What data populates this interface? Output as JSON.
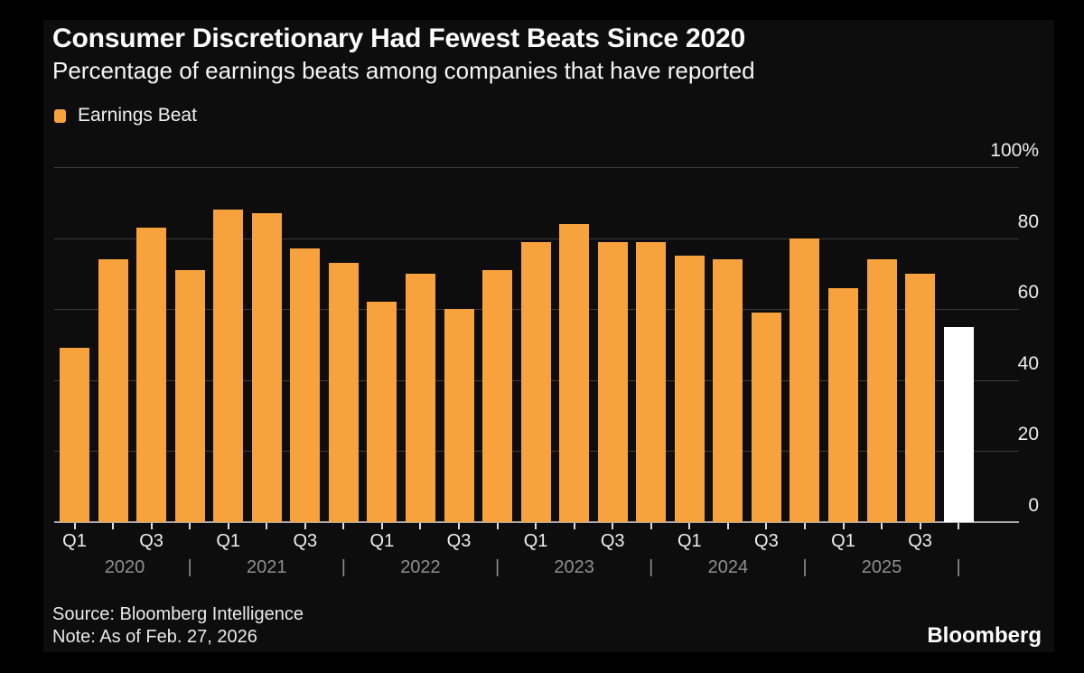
{
  "header": {
    "title": "Consumer Discretionary Had Fewest Beats Since 2020",
    "subtitle": "Percentage of earnings beats among companies that have reported"
  },
  "legend": {
    "label": "Earnings Beat",
    "swatch_color": "#F7A23C"
  },
  "chart_data": {
    "type": "bar",
    "title": "Consumer Discretionary Had Fewest Beats Since 2020",
    "subtitle": "Percentage of earnings beats among companies that have reported",
    "legend_entries": [
      "Earnings Beat"
    ],
    "categories": [
      "Q1 2020",
      "Q2 2020",
      "Q3 2020",
      "Q4 2020",
      "Q1 2021",
      "Q2 2021",
      "Q3 2021",
      "Q4 2021",
      "Q1 2022",
      "Q2 2022",
      "Q3 2022",
      "Q4 2022",
      "Q1 2023",
      "Q2 2023",
      "Q3 2023",
      "Q4 2023",
      "Q1 2024",
      "Q2 2024",
      "Q3 2024",
      "Q4 2024",
      "Q1 2025",
      "Q2 2025",
      "Q3 2025",
      "Q4 2025"
    ],
    "values": [
      49,
      74,
      83,
      71,
      88,
      87,
      77,
      73,
      62,
      70,
      60,
      71,
      79,
      84,
      79,
      79,
      75,
      74,
      59,
      80,
      66,
      74,
      70,
      55
    ],
    "bar_color": "#F7A23C",
    "highlight": {
      "index": 23,
      "category": "Q4 2025",
      "color": "#FFFFFF"
    },
    "ylim": [
      0,
      100
    ],
    "yticks": [
      0,
      20,
      40,
      60,
      80,
      100
    ],
    "ytick_labels": [
      "0",
      "20",
      "40",
      "60",
      "80",
      "100%"
    ],
    "grid": true,
    "legend_position": "top-left",
    "x_axis": {
      "quarter_labels": [
        "Q1",
        "Q3"
      ],
      "year_labels": [
        "2020",
        "2021",
        "2022",
        "2023",
        "2024",
        "2025"
      ],
      "year_separator": "|"
    }
  },
  "footer": {
    "source": "Source: Bloomberg Intelligence",
    "note": "Note: As of Feb. 27, 2026",
    "logo": "Bloomberg"
  }
}
